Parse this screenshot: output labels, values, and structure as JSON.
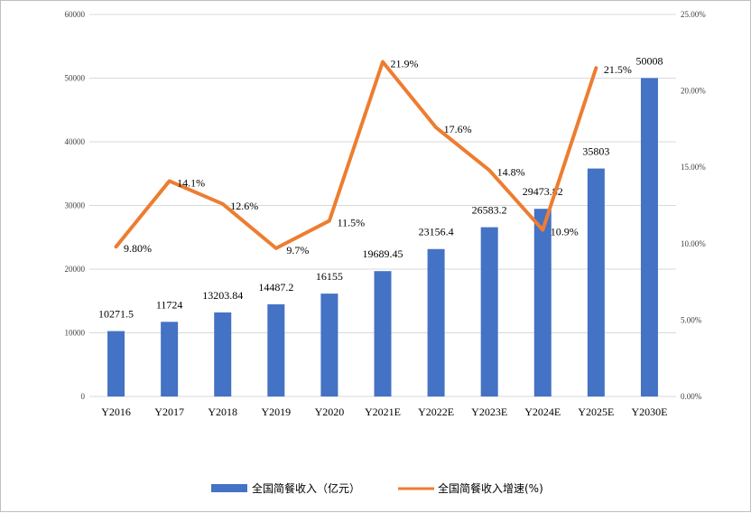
{
  "chart_data": {
    "type": "bar",
    "categories": [
      "Y2016",
      "Y2017",
      "Y2018",
      "Y2019",
      "Y2020",
      "Y2021E",
      "Y2022E",
      "Y2023E",
      "Y2024E",
      "Y2025E",
      "Y2030E"
    ],
    "series": [
      {
        "name": "全国简餐收入（亿元）",
        "type": "bar",
        "axis": "left",
        "color": "#4472C4",
        "values": [
          10271.5,
          11724,
          13203.84,
          14487.2,
          16155,
          19689.45,
          23156.4,
          26583.2,
          29473.82,
          35803,
          50008
        ],
        "labels": [
          "10271.5",
          "11724",
          "13203.84",
          "14487.2",
          "16155",
          "19689.45",
          "23156.4",
          "26583.2",
          "29473.82",
          "35803",
          "50008"
        ]
      },
      {
        "name": "全国简餐收入增速(%)",
        "type": "line",
        "axis": "right",
        "color": "#ED7D31",
        "values": [
          9.8,
          14.1,
          12.6,
          9.7,
          11.5,
          21.9,
          17.6,
          14.8,
          10.9,
          21.5,
          null
        ],
        "labels": [
          "9.80%",
          "14.1%",
          "12.6%",
          "9.7%",
          "11.5%",
          "21.9%",
          "17.6%",
          "14.8%",
          "10.9%",
          "21.5%",
          ""
        ]
      }
    ],
    "y_left": {
      "min": 0,
      "max": 60000,
      "ticks": [
        "0",
        "10000",
        "20000",
        "30000",
        "40000",
        "50000",
        "60000"
      ]
    },
    "y_right": {
      "min": 0,
      "max": 25,
      "ticks": [
        "0.00%",
        "5.00%",
        "10.00%",
        "15.00%",
        "20.00%",
        "25.00%"
      ]
    },
    "grid": true,
    "legend": "bottom"
  }
}
